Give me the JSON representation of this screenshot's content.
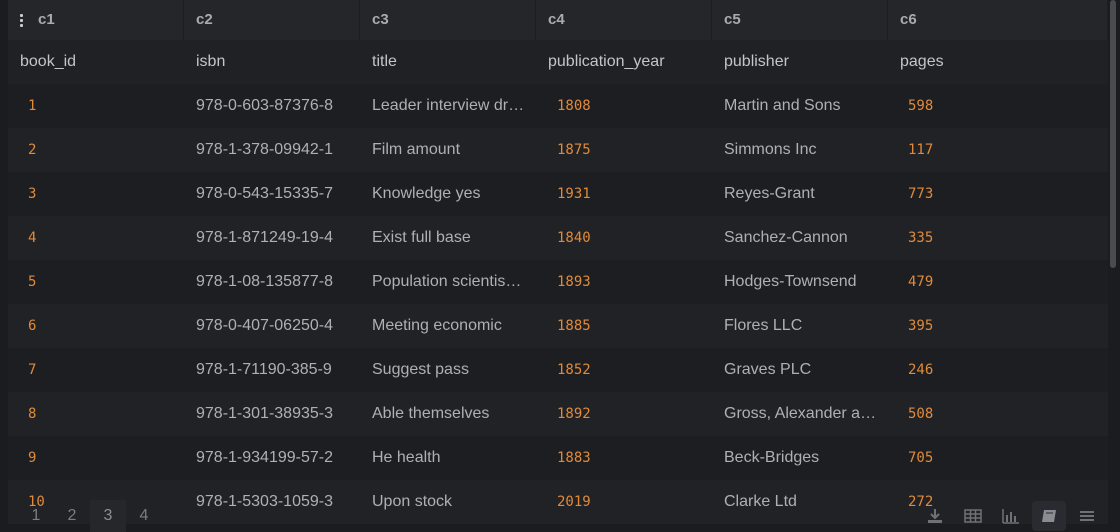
{
  "columns": {
    "letters": [
      "c1",
      "c2",
      "c3",
      "c4",
      "c5",
      "c6"
    ],
    "names": [
      "book_id",
      "isbn",
      "title",
      "publication_year",
      "publisher",
      "pages"
    ]
  },
  "rows": [
    {
      "book_id": "1",
      "isbn": "978-0-603-87376-8",
      "title": "Leader interview dr…",
      "publication_year": "1808",
      "publisher": "Martin and Sons",
      "pages": "598"
    },
    {
      "book_id": "2",
      "isbn": "978-1-378-09942-1",
      "title": "Film amount",
      "publication_year": "1875",
      "publisher": "Simmons Inc",
      "pages": "117"
    },
    {
      "book_id": "3",
      "isbn": "978-0-543-15335-7",
      "title": "Knowledge yes",
      "publication_year": "1931",
      "publisher": "Reyes-Grant",
      "pages": "773"
    },
    {
      "book_id": "4",
      "isbn": "978-1-871249-19-4",
      "title": "Exist full base",
      "publication_year": "1840",
      "publisher": "Sanchez-Cannon",
      "pages": "335"
    },
    {
      "book_id": "5",
      "isbn": "978-1-08-135877-8",
      "title": "Population scientis…",
      "publication_year": "1893",
      "publisher": "Hodges-Townsend",
      "pages": "479"
    },
    {
      "book_id": "6",
      "isbn": "978-0-407-06250-4",
      "title": "Meeting economic",
      "publication_year": "1885",
      "publisher": "Flores LLC",
      "pages": "395"
    },
    {
      "book_id": "7",
      "isbn": "978-1-71190-385-9",
      "title": "Suggest pass",
      "publication_year": "1852",
      "publisher": "Graves PLC",
      "pages": "246"
    },
    {
      "book_id": "8",
      "isbn": "978-1-301-38935-3",
      "title": "Able themselves",
      "publication_year": "1892",
      "publisher": "Gross, Alexander a…",
      "pages": "508"
    },
    {
      "book_id": "9",
      "isbn": "978-1-934199-57-2",
      "title": "He health",
      "publication_year": "1883",
      "publisher": "Beck-Bridges",
      "pages": "705"
    },
    {
      "book_id": "10",
      "isbn": "978-1-5303-1059-3",
      "title": "Upon stock",
      "publication_year": "2019",
      "publisher": "Clarke Ltd",
      "pages": "272"
    }
  ],
  "pagination": {
    "pages": [
      "1",
      "2",
      "3",
      "4"
    ],
    "active_page": "3"
  },
  "toolbar": {
    "icons": [
      "download-icon",
      "table-icon",
      "bar-chart-icon",
      "book-icon",
      "menu-icon"
    ],
    "active": "book-icon"
  },
  "colors": {
    "numeric_text": "#e08a3a",
    "background": "#1b1c1f",
    "header_background": "#25262a"
  }
}
